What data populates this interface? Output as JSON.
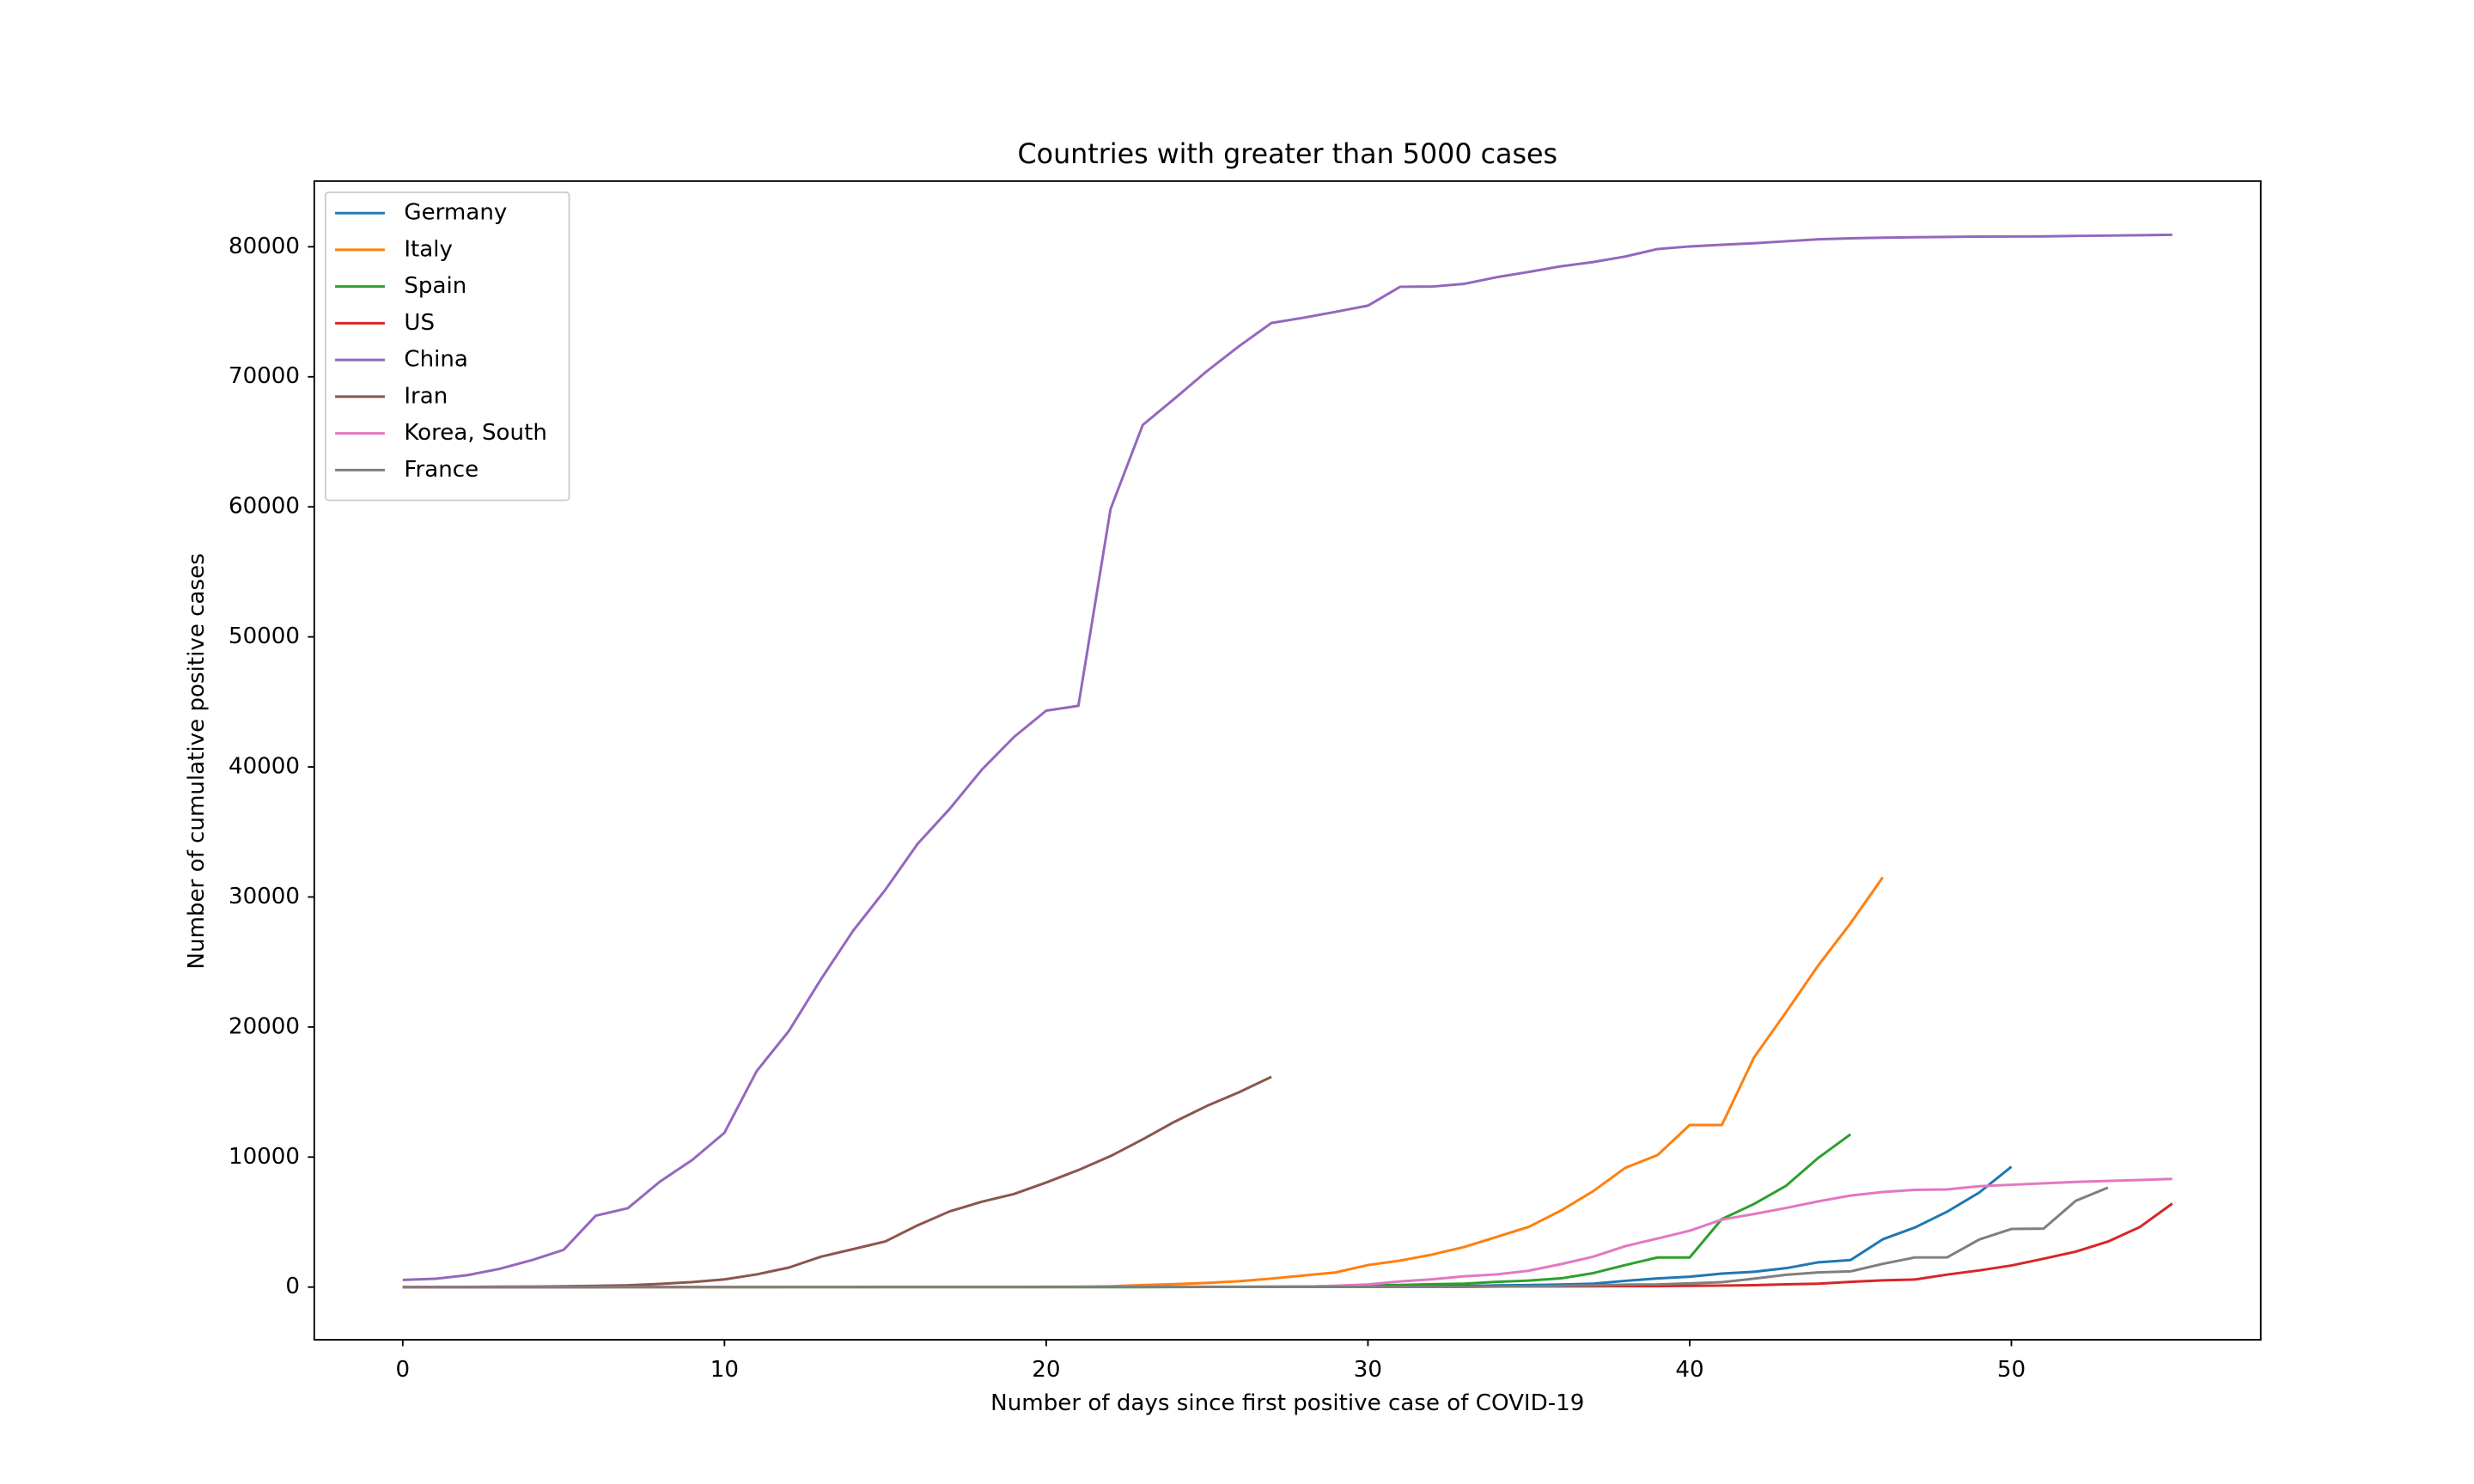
{
  "chart_data": {
    "type": "line",
    "title": "Countries with greater than 5000 cases",
    "xlabel": "Number of days since first positive case of COVID-19",
    "ylabel": "Number of cumulative positive cases",
    "x": [
      0,
      1,
      2,
      3,
      4,
      5,
      6,
      7,
      8,
      9,
      10,
      11,
      12,
      13,
      14,
      15,
      16,
      17,
      18,
      19,
      20,
      21,
      22,
      23,
      24,
      25,
      26,
      27,
      28,
      29,
      30,
      31,
      32,
      33,
      34,
      35,
      36,
      37,
      38,
      39,
      40,
      41,
      42,
      43,
      44,
      45,
      46,
      47,
      48,
      49,
      50,
      51,
      52,
      53,
      54,
      55
    ],
    "xlim": [
      -2.75,
      57.75
    ],
    "xticks": [
      0,
      10,
      20,
      30,
      40,
      50
    ],
    "ylim": [
      -4050,
      85050
    ],
    "yticks": [
      0,
      10000,
      20000,
      30000,
      40000,
      50000,
      60000,
      70000,
      80000
    ],
    "grid": false,
    "legend_position": "upper left",
    "series": [
      {
        "name": "Germany",
        "color": "#1f77b4",
        "values": [
          1,
          4,
          4,
          4,
          5,
          8,
          10,
          12,
          12,
          12,
          12,
          13,
          13,
          14,
          14,
          16,
          16,
          16,
          16,
          16,
          16,
          16,
          16,
          16,
          16,
          16,
          16,
          16,
          16,
          17,
          27,
          46,
          48,
          79,
          130,
          159,
          196,
          262,
          482,
          670,
          799,
          1040,
          1176,
          1457,
          1908,
          2078,
          3675,
          4585,
          5795,
          7272,
          9257,
          null,
          null,
          null,
          null,
          null
        ]
      },
      {
        "name": "Italy",
        "color": "#ff7f0e",
        "values": [
          2,
          2,
          2,
          2,
          2,
          2,
          2,
          3,
          3,
          3,
          3,
          3,
          3,
          3,
          3,
          3,
          3,
          3,
          3,
          3,
          3,
          20,
          62,
          155,
          229,
          322,
          453,
          655,
          888,
          1128,
          1694,
          2036,
          2502,
          3089,
          3858,
          4636,
          5883,
          7375,
          9172,
          10149,
          12462,
          12462,
          17660,
          21157,
          24747,
          27980,
          31506,
          null,
          null,
          null,
          null,
          null,
          null,
          null,
          null,
          null
        ]
      },
      {
        "name": "Spain",
        "color": "#2ca02c",
        "values": [
          1,
          1,
          1,
          1,
          1,
          1,
          1,
          1,
          1,
          2,
          2,
          2,
          2,
          2,
          2,
          2,
          2,
          2,
          2,
          2,
          2,
          2,
          2,
          2,
          6,
          13,
          15,
          32,
          45,
          84,
          120,
          165,
          222,
          259,
          400,
          500,
          673,
          1073,
          1695,
          2277,
          2277,
          5232,
          6391,
          7798,
          9942,
          11748,
          null,
          null,
          null,
          null,
          null,
          null,
          null,
          null,
          null,
          null
        ]
      },
      {
        "name": "US",
        "color": "#d62728",
        "values": [
          1,
          1,
          2,
          2,
          5,
          5,
          5,
          5,
          5,
          7,
          8,
          8,
          11,
          11,
          11,
          11,
          11,
          11,
          11,
          11,
          12,
          12,
          13,
          13,
          13,
          13,
          13,
          13,
          13,
          13,
          15,
          15,
          15,
          51,
          51,
          57,
          58,
          60,
          68,
          74,
          98,
          118,
          149,
          217,
          262,
          402,
          518,
          583,
          959,
          1281,
          1663,
          2179,
          2727,
          3499,
          4632,
          6421
        ]
      },
      {
        "name": "China",
        "color": "#9467bd",
        "values": [
          548,
          639,
          916,
          1399,
          2062,
          2863,
          5494,
          6070,
          8124,
          9783,
          11871,
          16607,
          19693,
          23680,
          27409,
          30553,
          34075,
          36778,
          39790,
          42306,
          44327,
          44699,
          59832,
          66292,
          68347,
          70446,
          72364,
          74139,
          74546,
          74999,
          75472,
          76922,
          76938,
          77152,
          77660,
          78065,
          78498,
          78824,
          79251,
          79826,
          80026,
          80151,
          80271,
          80422,
          80573,
          80652,
          80699,
          80735,
          80757,
          80785,
          80793,
          80801,
          80835,
          80860,
          80887,
          80921
        ]
      },
      {
        "name": "Iran",
        "color": "#8c564b",
        "values": [
          2,
          5,
          18,
          28,
          43,
          61,
          95,
          139,
          245,
          388,
          593,
          978,
          1501,
          2336,
          2922,
          3513,
          4747,
          5823,
          6566,
          7161,
          8042,
          9000,
          10075,
          11364,
          12729,
          13938,
          14991,
          16169,
          null,
          null,
          null,
          null,
          null,
          null,
          null,
          null,
          null,
          null,
          null,
          null,
          null,
          null,
          null,
          null,
          null,
          null,
          null,
          null,
          null,
          null,
          null,
          null,
          null,
          null,
          null,
          null
        ]
      },
      {
        "name": "Korea, South",
        "color": "#e377c2",
        "values": [
          1,
          1,
          2,
          2,
          3,
          4,
          4,
          4,
          4,
          11,
          12,
          15,
          15,
          16,
          19,
          23,
          24,
          24,
          25,
          27,
          28,
          28,
          28,
          28,
          28,
          29,
          30,
          31,
          31,
          104,
          204,
          433,
          602,
          833,
          977,
          1261,
          1766,
          2337,
          3150,
          3736,
          4335,
          5186,
          5621,
          6088,
          6593,
          7041,
          7314,
          7478,
          7513,
          7755,
          7869,
          7979,
          8086,
          8162,
          8236,
          8320
        ]
      },
      {
        "name": "France",
        "color": "#7f7f7f",
        "values": [
          2,
          3,
          3,
          3,
          4,
          5,
          5,
          5,
          6,
          6,
          6,
          6,
          6,
          6,
          6,
          11,
          11,
          11,
          11,
          11,
          11,
          11,
          12,
          12,
          12,
          12,
          12,
          12,
          12,
          12,
          12,
          12,
          12,
          18,
          38,
          57,
          100,
          130,
          191,
          204,
          285,
          377,
          653,
          949,
          1126,
          1209,
          1784,
          2281,
          2281,
          3661,
          4469,
          4499,
          6633,
          7652,
          null,
          null
        ]
      }
    ]
  }
}
